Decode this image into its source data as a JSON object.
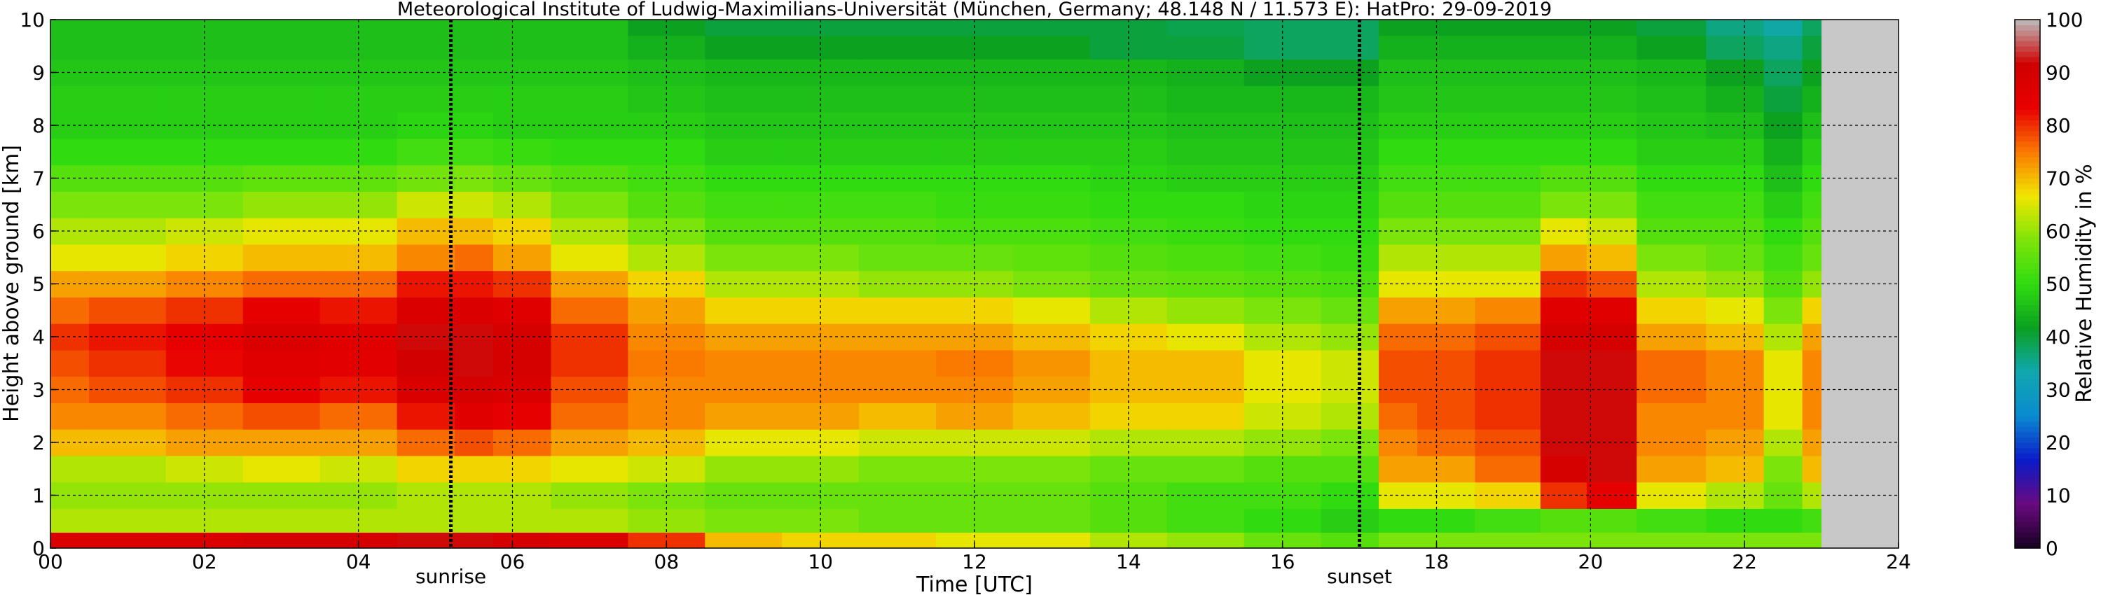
{
  "chart_data": {
    "type": "heatmap",
    "title": "Meteorological Institute of Ludwig-Maximilians-Universität (München, Germany; 48.148 N / 11.573 E):    HatPro: 29-09-2019",
    "xlabel": "Time [UTC]",
    "ylabel": "Height above ground [km]",
    "xlim": [
      0,
      24
    ],
    "ylim": [
      0,
      10
    ],
    "x_ticks": [
      "00",
      "02",
      "04",
      "06",
      "08",
      "10",
      "12",
      "14",
      "16",
      "18",
      "20",
      "22",
      "24"
    ],
    "y_ticks": [
      "0",
      "1",
      "2",
      "3",
      "4",
      "5",
      "6",
      "7",
      "8",
      "9",
      "10"
    ],
    "grid": true,
    "data_end_hour": 23.0,
    "colorbar": {
      "label": "Relative Humidity in %",
      "range": [
        0,
        100
      ],
      "ticks": [
        "0",
        "10",
        "20",
        "30",
        "40",
        "50",
        "60",
        "70",
        "80",
        "90",
        "100"
      ],
      "colors": [
        "#150020",
        "#6a0a80",
        "#0a1ac8",
        "#0a8ad0",
        "#10a8b0",
        "#0aa020",
        "#30dc10",
        "#7ee40a",
        "#f0e600",
        "#fa7a00",
        "#e80000",
        "#d00000",
        "#bcbcbc"
      ]
    },
    "annotations": [
      {
        "label": "sunrise",
        "hour": 5.2
      },
      {
        "label": "sunset",
        "hour": 17.0
      }
    ],
    "heights_km": [
      0.1,
      0.5,
      1,
      1.5,
      2,
      2.5,
      3,
      3.5,
      4,
      4.5,
      5,
      5.5,
      6,
      6.5,
      7,
      7.5,
      8,
      8.5,
      9,
      9.5,
      9.9
    ],
    "times_hour": [
      0,
      1,
      2,
      3,
      4,
      5,
      5.5,
      6,
      7,
      8,
      9,
      10,
      11,
      12,
      13,
      14,
      15,
      16,
      17,
      17.5,
      18,
      19,
      19.7,
      20.2,
      21,
      22,
      22.5,
      23
    ],
    "humidity_profiles": [
      [
        88,
        62,
        60,
        62,
        70,
        74,
        76,
        78,
        80,
        76,
        72,
        66,
        62,
        58,
        54,
        50,
        48,
        48,
        47,
        46,
        46
      ],
      [
        88,
        62,
        60,
        62,
        70,
        74,
        78,
        80,
        82,
        78,
        72,
        66,
        62,
        58,
        54,
        50,
        48,
        48,
        47,
        46,
        46
      ],
      [
        88,
        62,
        60,
        64,
        72,
        76,
        80,
        83,
        84,
        80,
        74,
        68,
        64,
        58,
        54,
        50,
        48,
        48,
        47,
        46,
        46
      ],
      [
        90,
        62,
        60,
        66,
        72,
        78,
        84,
        86,
        88,
        84,
        76,
        70,
        66,
        60,
        55,
        50,
        48,
        48,
        47,
        46,
        46
      ],
      [
        90,
        62,
        60,
        64,
        72,
        76,
        82,
        85,
        86,
        82,
        76,
        70,
        66,
        60,
        55,
        50,
        48,
        48,
        47,
        46,
        46
      ],
      [
        92,
        62,
        62,
        68,
        76,
        82,
        88,
        91,
        92,
        88,
        82,
        74,
        70,
        64,
        57,
        52,
        49,
        48,
        47,
        46,
        46
      ],
      [
        92,
        62,
        62,
        68,
        78,
        86,
        90,
        92,
        92,
        88,
        82,
        76,
        70,
        64,
        58,
        52,
        49,
        48,
        47,
        46,
        46
      ],
      [
        90,
        62,
        62,
        68,
        76,
        84,
        88,
        90,
        90,
        86,
        80,
        72,
        68,
        62,
        56,
        51,
        48,
        48,
        47,
        46,
        46
      ],
      [
        88,
        62,
        60,
        66,
        72,
        76,
        78,
        80,
        80,
        76,
        72,
        66,
        62,
        58,
        54,
        50,
        48,
        48,
        47,
        46,
        46
      ],
      [
        80,
        60,
        58,
        64,
        70,
        74,
        74,
        75,
        74,
        72,
        68,
        62,
        58,
        54,
        52,
        50,
        48,
        47,
        46,
        44,
        42
      ],
      [
        70,
        58,
        56,
        60,
        66,
        72,
        74,
        74,
        72,
        68,
        62,
        58,
        54,
        52,
        50,
        48,
        47,
        46,
        45,
        42,
        40
      ],
      [
        68,
        58,
        56,
        60,
        66,
        72,
        74,
        74,
        72,
        68,
        62,
        58,
        54,
        52,
        50,
        48,
        47,
        46,
        45,
        42,
        40
      ],
      [
        68,
        56,
        56,
        58,
        64,
        70,
        74,
        74,
        72,
        68,
        60,
        56,
        54,
        52,
        50,
        48,
        47,
        46,
        45,
        42,
        40
      ],
      [
        66,
        56,
        56,
        58,
        64,
        72,
        74,
        75,
        72,
        68,
        60,
        56,
        53,
        51,
        50,
        48,
        47,
        46,
        45,
        42,
        40
      ],
      [
        66,
        56,
        56,
        58,
        64,
        70,
        72,
        73,
        70,
        66,
        58,
        55,
        53,
        51,
        50,
        48,
        47,
        46,
        45,
        42,
        40
      ],
      [
        62,
        54,
        54,
        56,
        62,
        68,
        70,
        70,
        68,
        62,
        56,
        54,
        52,
        50,
        49,
        48,
        47,
        46,
        45,
        40,
        40
      ],
      [
        60,
        52,
        52,
        56,
        62,
        68,
        70,
        70,
        66,
        60,
        55,
        53,
        51,
        50,
        48,
        47,
        46,
        45,
        44,
        40,
        39
      ],
      [
        56,
        50,
        52,
        54,
        60,
        64,
        66,
        66,
        62,
        58,
        54,
        52,
        50,
        49,
        48,
        47,
        46,
        45,
        42,
        38,
        38
      ],
      [
        54,
        48,
        50,
        54,
        58,
        62,
        64,
        64,
        60,
        56,
        53,
        51,
        50,
        49,
        48,
        47,
        46,
        45,
        42,
        38,
        38
      ],
      [
        58,
        50,
        66,
        72,
        74,
        76,
        78,
        78,
        76,
        72,
        66,
        62,
        58,
        54,
        52,
        50,
        48,
        47,
        46,
        44,
        42
      ],
      [
        58,
        50,
        66,
        72,
        76,
        78,
        78,
        78,
        76,
        72,
        66,
        62,
        58,
        54,
        52,
        50,
        48,
        47,
        46,
        44,
        42
      ],
      [
        58,
        52,
        68,
        76,
        78,
        80,
        80,
        80,
        78,
        74,
        66,
        62,
        58,
        54,
        52,
        50,
        48,
        47,
        46,
        44,
        42
      ],
      [
        58,
        54,
        80,
        90,
        92,
        92,
        92,
        92,
        90,
        86,
        80,
        72,
        66,
        58,
        54,
        50,
        48,
        47,
        46,
        44,
        42
      ],
      [
        58,
        54,
        84,
        92,
        92,
        92,
        92,
        92,
        90,
        86,
        78,
        70,
        64,
        58,
        54,
        50,
        48,
        47,
        46,
        44,
        42
      ],
      [
        58,
        52,
        66,
        72,
        74,
        74,
        76,
        76,
        72,
        68,
        62,
        58,
        54,
        52,
        50,
        48,
        47,
        46,
        45,
        42,
        40
      ],
      [
        58,
        50,
        62,
        70,
        72,
        74,
        74,
        74,
        70,
        66,
        60,
        56,
        54,
        52,
        50,
        48,
        46,
        44,
        42,
        38,
        36
      ],
      [
        58,
        50,
        56,
        58,
        62,
        66,
        66,
        66,
        62,
        58,
        54,
        52,
        50,
        48,
        46,
        44,
        42,
        40,
        38,
        36,
        34
      ],
      [
        58,
        52,
        62,
        70,
        72,
        74,
        74,
        74,
        72,
        68,
        60,
        56,
        54,
        52,
        50,
        48,
        46,
        44,
        42,
        40,
        38
      ]
    ]
  }
}
